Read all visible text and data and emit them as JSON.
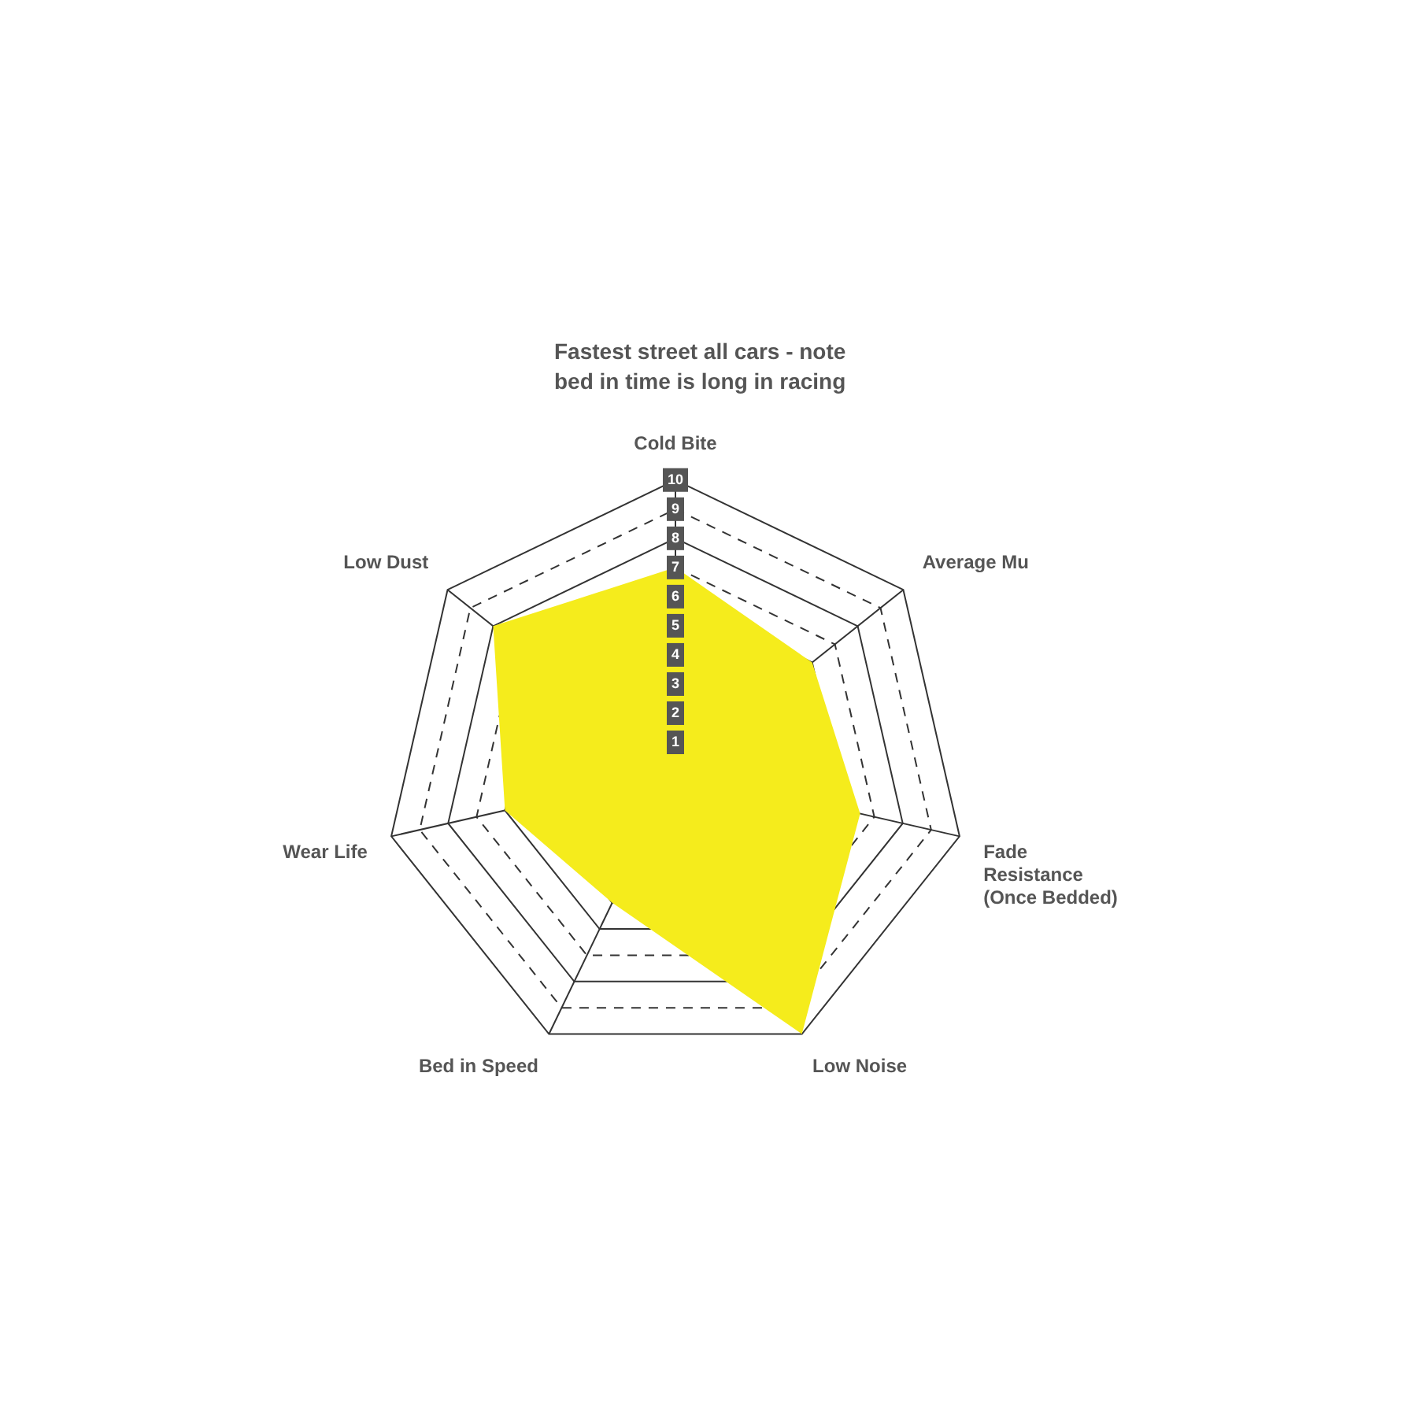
{
  "chart_data": {
    "type": "radar",
    "title": "Fastest street all cars - note bed in time is long in racing",
    "categories": [
      "Cold Bite",
      "Average Mu",
      "Fade Resistance (Once Bedded)",
      "Low Noise",
      "Bed in Speed",
      "Wear Life",
      "Low Dust"
    ],
    "series": [
      {
        "color": "#f5ec1c",
        "values": [
          7,
          6,
          6.5,
          10,
          5,
          6,
          8
        ]
      }
    ],
    "ylim": [
      0,
      10
    ],
    "yticks": [
      1,
      2,
      3,
      4,
      5,
      6,
      7,
      8,
      9,
      10
    ],
    "grid": true,
    "legend": false
  }
}
